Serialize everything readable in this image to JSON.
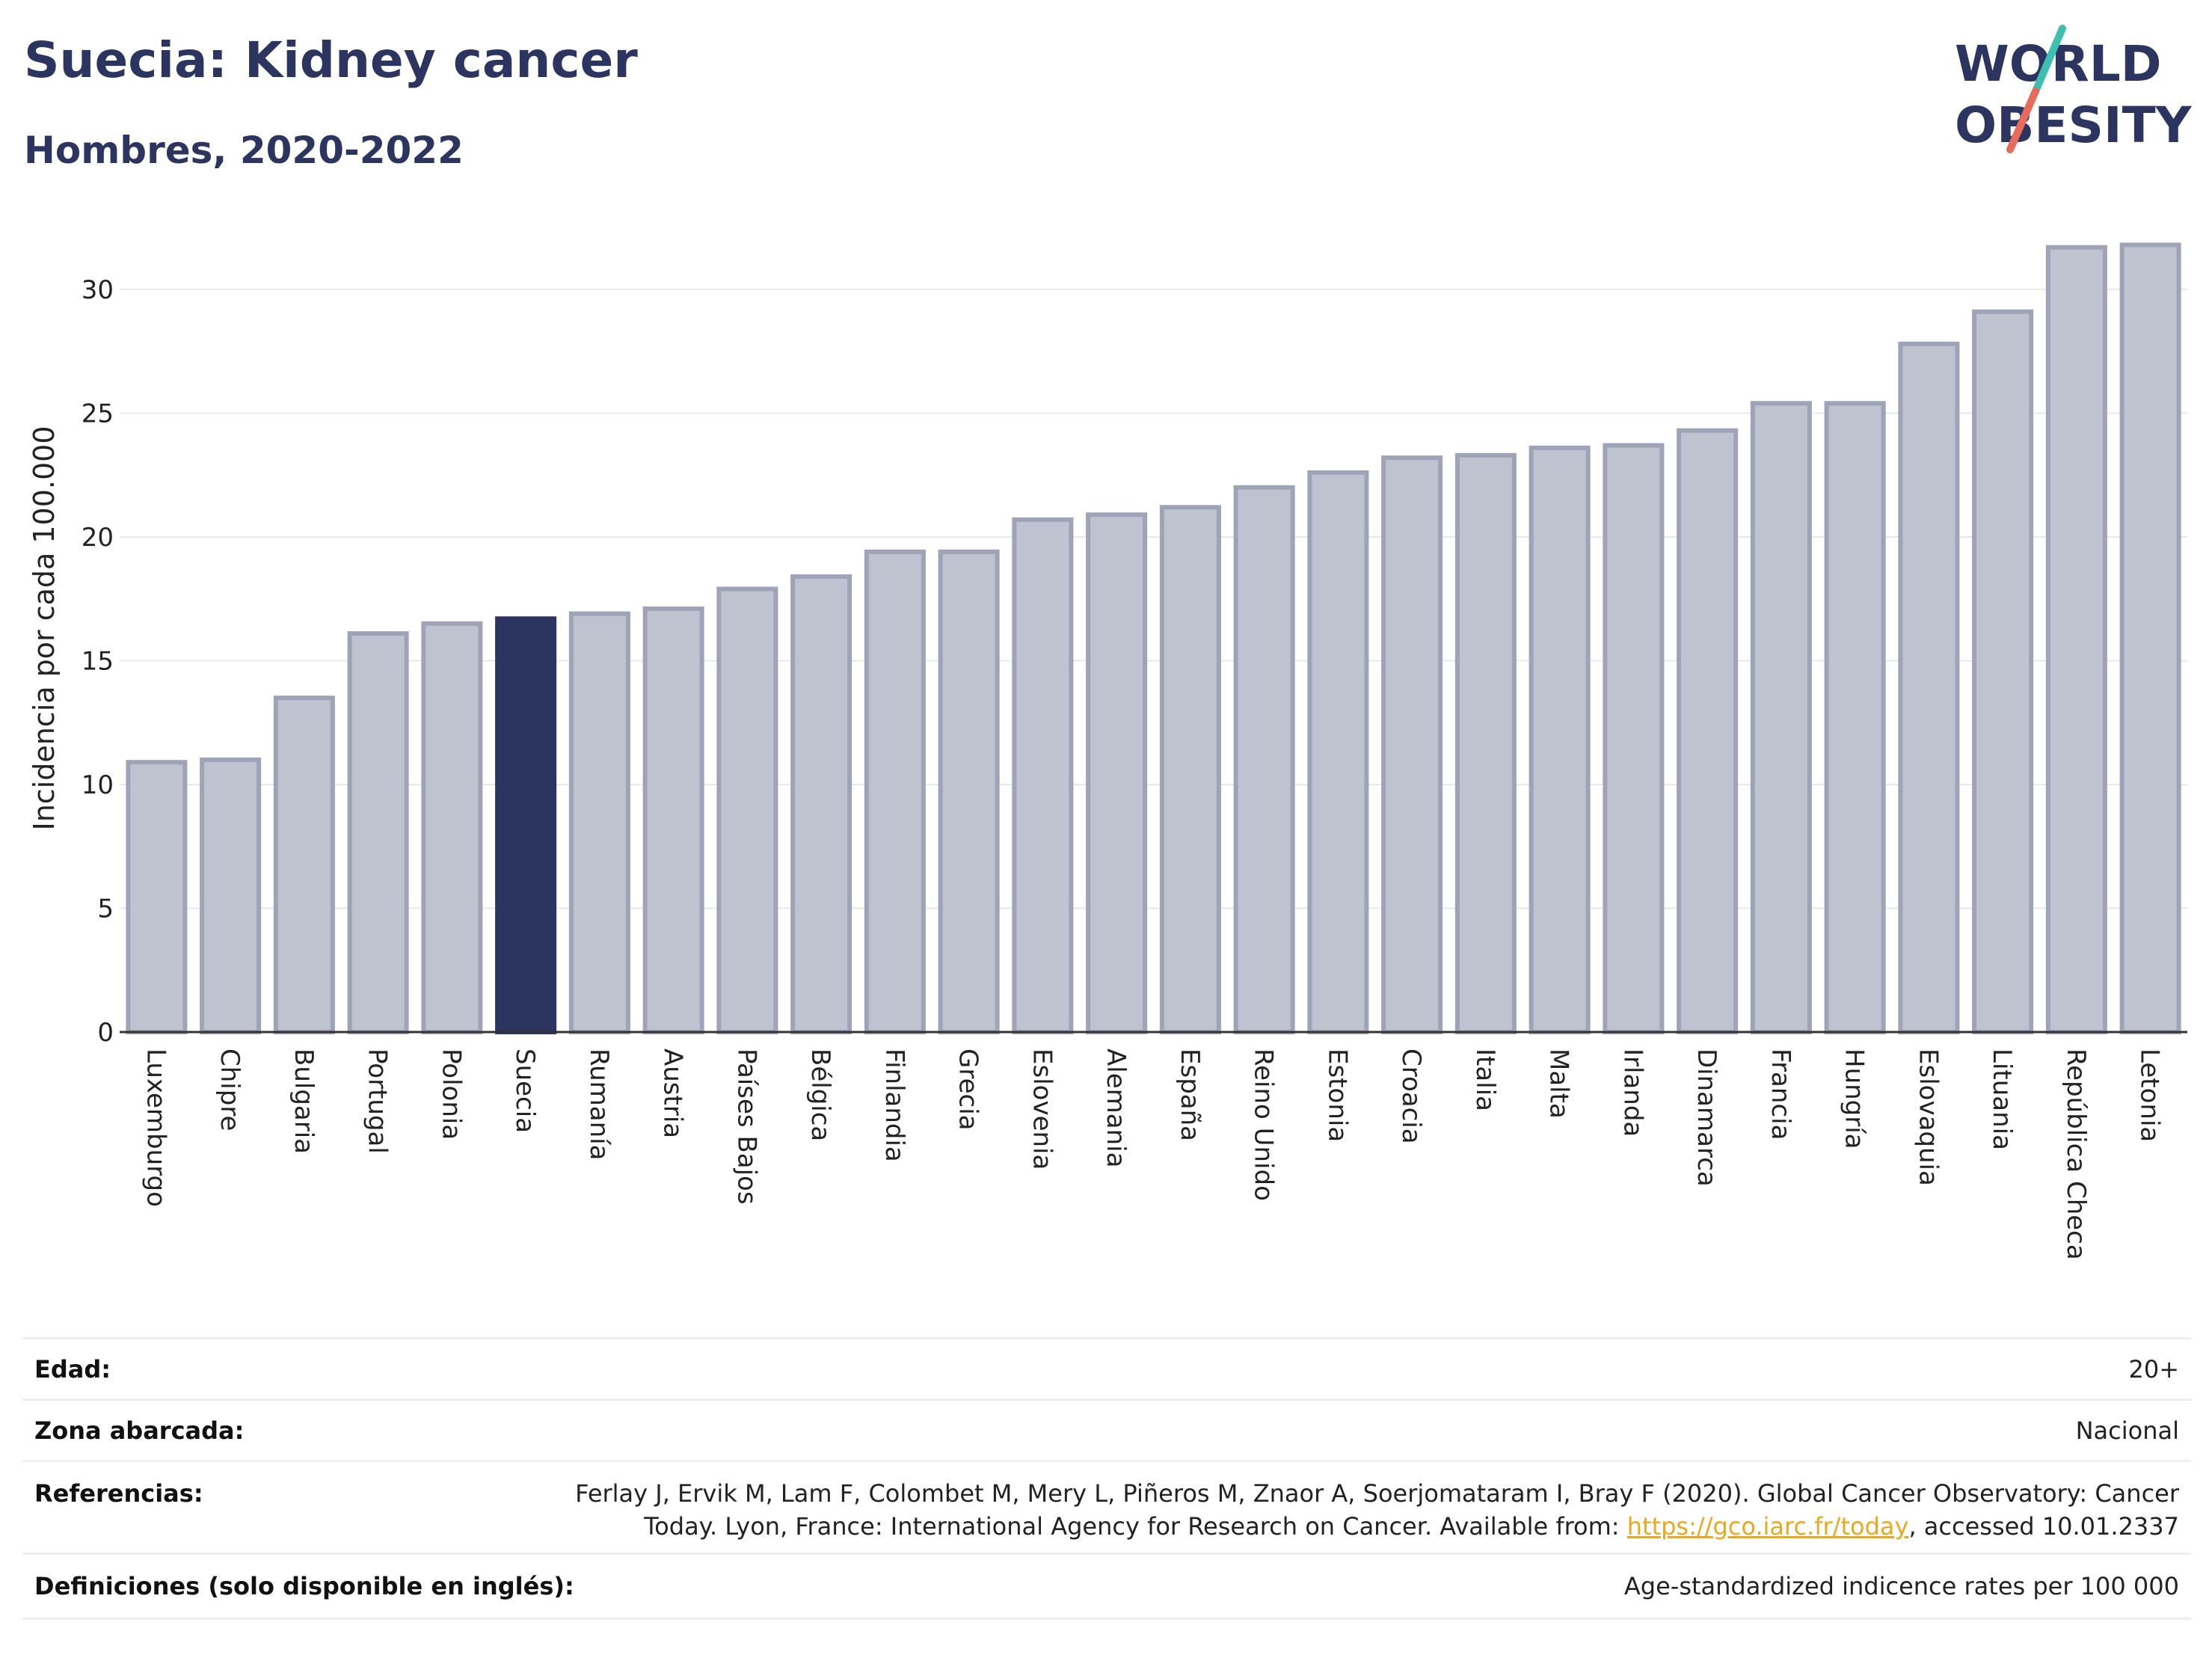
{
  "header": {
    "title": "Suecia: Kidney cancer",
    "subtitle": "Hombres, 2020-2022"
  },
  "logo": {
    "line1": "WORLD",
    "line2": "OBESITY"
  },
  "colors": {
    "bar": "#bfc3d0",
    "bar_border": "#9ea3b8",
    "highlight": "#2b3560",
    "title": "#2b3560",
    "grid": "#e6e8ee",
    "link": "#e8a822"
  },
  "chart_data": {
    "type": "bar",
    "ylabel": "Incidencia por cada 100.000",
    "ylim": [
      0,
      32
    ],
    "yticks": [
      0,
      5,
      10,
      15,
      20,
      25,
      30
    ],
    "grid": true,
    "highlight": "Suecia",
    "categories": [
      "Luxemburgo",
      "Chipre",
      "Bulgaria",
      "Portugal",
      "Polonia",
      "Suecia",
      "Rumanía",
      "Austria",
      "Países Bajos",
      "Bélgica",
      "Finlandia",
      "Grecia",
      "Eslovenia",
      "Alemania",
      "España",
      "Reino Unido",
      "Estonia",
      "Croacia",
      "Italia",
      "Malta",
      "Irlanda",
      "Dinamarca",
      "Francia",
      "Hungría",
      "Eslovaquia",
      "Lituania",
      "República Checa",
      "Letonia"
    ],
    "values": [
      10.9,
      11.0,
      13.5,
      16.1,
      16.5,
      16.7,
      16.9,
      17.1,
      17.9,
      18.4,
      19.4,
      19.4,
      20.7,
      20.9,
      21.2,
      22.0,
      22.6,
      23.2,
      23.3,
      23.6,
      23.7,
      24.3,
      25.4,
      25.4,
      27.8,
      29.1,
      31.7,
      31.8
    ]
  },
  "info": {
    "edad_label": "Edad:",
    "edad_value": "20+",
    "zona_label": "Zona abarcada:",
    "zona_value": "Nacional",
    "ref_label": "Referencias:",
    "ref_line1": "Ferlay J, Ervik M, Lam F, Colombet M, Mery L, Piñeros M, Znaor A, Soerjomataram I, Bray F (2020). Global Cancer Observatory: Cancer",
    "ref_line2_pre": "Today. Lyon, France: International Agency for Research on Cancer. Available from: ",
    "ref_link": "https://gco.iarc.fr/today",
    "ref_line2_post": ", accessed 10.01.2337",
    "def_label": "Definiciones (solo disponible en inglés):",
    "def_value": "Age-standardized indicence rates per 100 000"
  }
}
